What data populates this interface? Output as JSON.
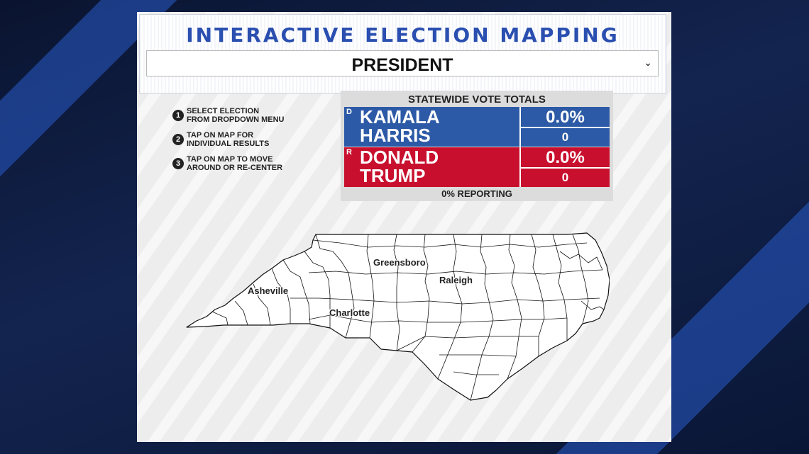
{
  "header": {
    "title": "INTERACTIVE ELECTION MAPPING",
    "race_selector": {
      "selected": "PRESIDENT",
      "arrow": "⌄"
    }
  },
  "instructions": [
    {
      "number": "1",
      "text": "SELECT ELECTION\nFROM DROPDOWN MENU"
    },
    {
      "number": "2",
      "text": "TAP ON MAP FOR\nINDIVIDUAL RESULTS"
    },
    {
      "number": "3",
      "text": "TAP ON MAP TO MOVE\nAROUND OR RE-CENTER"
    }
  ],
  "totals": {
    "title": "STATEWIDE VOTE TOTALS",
    "candidates": [
      {
        "party": "D",
        "name": "KAMALA\nHARRIS",
        "percent": "0.0%",
        "votes": "0",
        "color": "#2d5aa6"
      },
      {
        "party": "R",
        "name": "DONALD\nTRUMP",
        "percent": "0.0%",
        "votes": "0",
        "color": "#c8102e"
      }
    ],
    "reporting": "0% REPORTING"
  },
  "map": {
    "cities": [
      {
        "name": "Greensboro"
      },
      {
        "name": "Raleigh"
      },
      {
        "name": "Asheville"
      },
      {
        "name": "Charlotte"
      }
    ]
  }
}
